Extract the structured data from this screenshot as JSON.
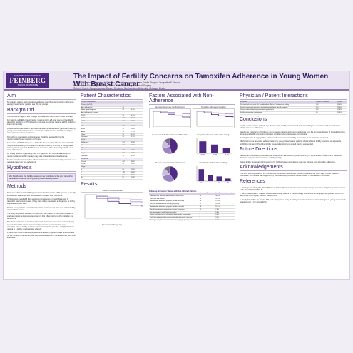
{
  "header": {
    "logo_lines": [
      "NORTHWESTERN UNIVERSITY",
      "FEINBERG",
      "SCHOOL OF MEDICINE"
    ],
    "title": "The Impact of Fertility Concerns on Tamoxifen Adherence in Young Women With Breast Cancer",
    "authors": "Natalie C. Llarena, Samantha L. Estevez, Chloe Hoover, Irene Kane, Joelle Shapiro, Jacqueline S. Jeruss",
    "affil1": "Northwestern University Feinberg School of Medicine, Department of Surgery",
    "affil2": "Robert H. Lurie Comprehensive Cancer Center of Northwestern University, Chicago, Illinois"
  },
  "col1": {
    "aim_title": "Aim",
    "aim_text": "To evaluate patient- and provider-level factors that influence tamoxifen adherence among breast cancer patients age 45 and younger.",
    "bg_title": "Background",
    "bg_paras": [
      "~22,000 women age 45 and younger are diagnosed with breast cancer annually.",
      "For patients with ER+ breast cancer, treatment with a 5-year course of the SERM tamoxifen results in a 47% reduction in annual recurrence risk and a 26% reduction in annual mortality.",
      "Despite substantial benefits, tamoxifen adherence rates are low, particularly among young women. Poor adherence is associated with increased mortality and higher rates of breast cancer recurrence.",
      "Tamoxifen is a teratogen and pregnancy should be avoided during the recommended 5-year duration of therapy.",
      "For women of childbearing age, ~45% who have developed breast cancer, fertility may be an important part of treatment decision-making. A survey of young breast cancer patients reported that 31% were concerned about becoming infertile as a result of treatment.",
      "As fertility declines significantly after the age of 35, the considerable length of recommended tamoxifen therapy may be a critical deterrent to adherence.",
      "Studies on adjuvant tamoxifen adherence have not examined fertility concerns as a potential reason for non-adherence."
    ],
    "hyp_title": "Hypothesis",
    "hyp_text": "We hypothesize that fertility concerns may contribute to the poor tamoxifen adherence observed among young breast cancer patients.",
    "meth_title": "Methods",
    "meth_paras": [
      "Data were obtained with IRB approval from Northwestern's EMR systems to identify ER+ women diagnosed with breast cancer between 2007 and 2013.",
      "Patients were included if they were pre-menopausal at time of diagnosis, if tamoxifen was recommended, if they were widely metastatic at diagnosis, or if they stopped tamoxifen early.",
      "Patient demographics, tumor characteristics and treatment data were abstracted by manual chart review.",
      "The study population included 536 patients. Each patient's chart was reviewed to evaluate patient and provider-level factors that influenced tamoxifen initiation and adherence.",
      "Provider-level factors associated with the decision were evaluated and include (1) whether tamoxifen was recommended, (2) whether a conversation about tamoxifen-related fertility concerns was initiated by the provider, and (3) whether a referral to a fertility specialist was offered.",
      "Patient-level factors included (1) whether the patient agreed to take tamoxifen and (2) the duration of tamoxifen use. Factors associated with non-adherence were also evaluated."
    ]
  },
  "col2": {
    "title": "Patient Characteristics",
    "table_title": "Patient Characteristics",
    "table": [
      {
        "l": "Patients (n=536)",
        "a": "",
        "b": "",
        "s": true
      },
      {
        "l": "Age at diagnosis",
        "a": "40",
        "b": ""
      },
      {
        "l": "Mean age at diagnosis",
        "a": "38",
        "b": "6.7%"
      },
      {
        "l": "Age at diagnosis in years",
        "a": "",
        "b": ""
      },
      {
        "l": "20-29",
        "a": "34",
        "b": "6.3%"
      },
      {
        "l": "30-39",
        "a": "188",
        "b": "35.1%"
      },
      {
        "l": "40-45",
        "a": "314",
        "b": "58.6%"
      },
      {
        "l": "Race",
        "a": "",
        "b": "",
        "s": true
      },
      {
        "l": "White",
        "a": "376",
        "b": "70.1%"
      },
      {
        "l": "Black",
        "a": "71",
        "b": "13.2%"
      },
      {
        "l": "Asian",
        "a": "38",
        "b": "7.1%"
      },
      {
        "l": "Other",
        "a": "31",
        "b": "5.8%"
      },
      {
        "l": "Unknown",
        "a": "20",
        "b": "3.7%"
      },
      {
        "l": "Parity",
        "a": "",
        "b": "",
        "s": true
      },
      {
        "l": "Nulliparous",
        "a": "201",
        "b": "37.5%"
      },
      {
        "l": "Parous",
        "a": "335",
        "b": "62.5%"
      },
      {
        "l": "Marital status",
        "a": "",
        "b": "",
        "s": true
      },
      {
        "l": "Married",
        "a": "368",
        "b": "68.7%"
      },
      {
        "l": "Single",
        "a": "149",
        "b": "27.8%"
      },
      {
        "l": "Unknown",
        "a": "19",
        "b": "3.5%"
      },
      {
        "l": "Insurance",
        "a": "",
        "b": "",
        "s": true
      },
      {
        "l": "Private",
        "a": "462",
        "b": "86.2%"
      },
      {
        "l": "Public",
        "a": "54",
        "b": "10.1%"
      },
      {
        "l": "Stage",
        "a": "",
        "b": "",
        "s": true
      },
      {
        "l": "0",
        "a": "63",
        "b": "11.8%"
      },
      {
        "l": "I",
        "a": "182",
        "b": "34.0%"
      },
      {
        "l": "II",
        "a": "200",
        "b": "37.3%"
      },
      {
        "l": "III",
        "a": "91",
        "b": "17.0%"
      }
    ],
    "results_title": "Results",
    "km_title": "Tamoxifen Adherence Data",
    "km_caption": "Time on tamoxifen (years)"
  },
  "col3": {
    "title": "Factors Associated with Non-Adherence",
    "top_chart_a": "Tamoxifen Adherence: Fertility Concerns",
    "top_chart_b": "Tamoxifen Adherence: Cessation",
    "mid_pie_a": "Reasons for Early Discontinuation of Tamoxifen",
    "mid_bar_a": "Early Discontinuation of Tamoxifen and Age",
    "low_pie_a": "Reasons for non-initiation of Tamoxifen",
    "low_bar_a": "Non-initiation of Tamoxifen and Stage",
    "disc_title": "Follow-up Discussion Themes with Non-Adherent Patients",
    "disc_cols": [
      "Number of Patients",
      "% of Patients Discussed"
    ],
    "disc_rows": [
      [
        "Side effects or concerns about potential side effects",
        "56",
        "36.4%"
      ],
      [
        "Perceived little benefit",
        "35",
        "22.7%"
      ],
      [
        "Had intention to become pregnant but did not initiate",
        "24",
        "15.6%"
      ],
      [
        "Currently off tamoxifen to attempt pregnancy",
        "22",
        "14.3%"
      ],
      [
        "Had intention to become pregnant and then initiated",
        "18",
        "11.7%"
      ],
      [
        "Would have stopped tamoxifen to attempt pregnancy",
        "12",
        "7.8%"
      ],
      [
        "Became pregnant while taking tamoxifen",
        "9",
        "5.8%"
      ],
      [
        "Patient had not pursued information about fertility preservation",
        "8",
        "5.2%"
      ],
      [
        "Could not undergo fertility preservation due to financial concerns",
        "5",
        "3.2%"
      ],
      [
        "Waiting to complete tamoxifen before attempting pregnancy",
        "4",
        "2.6%"
      ]
    ]
  },
  "col4": {
    "phys_title": "Physician / Patient Interactions",
    "phys_cols": [
      "Encounter",
      "Number of Patients",
      "Percent"
    ],
    "phys_rows": [
      [
        "Documented discussion with provider about effects of treatment on fertility",
        "152",
        "28.4%"
      ],
      [
        "Patients expressed an interest in maintaining fertility at time of diagnosis",
        "114",
        "21.3%"
      ],
      [
        "Patients offered a fertility preservation appointment",
        "107",
        "20.0%"
      ],
      [
        "Fertility preservation appointment",
        "64",
        "11.9%"
      ]
    ],
    "conc_title": "Conclusions",
    "conc_paras": [
      "For ER+ breast cancer patients age 45 and under, fertility concerns and current smoking are associated with tamoxifen non-initiation and non-adherence.",
      "Despite the importance of fertility to young cancer patients and recommendations from the American Society of Clinical Oncology, documented fertility discussions between providers and patients were inconsistent.",
      "Oncologists should engage their patients in discussions about fertility as it relates to breast cancer treatment.",
      "Efforts to improve tamoxifen adherence among young breast cancer patients should address fertility concerns, as a possible modifiable risk factor. Providing fertility preservation programs should also be emphasized."
    ],
    "fut_title": "Future Directions",
    "fut_paras": [
      "Develop and validate a predictive model of tamoxifen adherence for young women (<= 45) with ER+ breast cancer, based on physician and patient-level factors, including fertility.",
      "Design fertility preservation interventions for both providers and patients that may address poor tamoxifen adherence."
    ],
    "ack_title": "Acknowledgements",
    "ack_text": "This work was supported by the Oncofertility Consortium NIH/NICHD U54HD076188 and the Lynn Sage Cancer Research Foundation. Dr. Llarena was supported by the Lurie Comprehensive Cancer Center of Northwestern University.",
    "ref_title": "References",
    "refs": [
      "1. Partridge AH, Wang PS, Winer EP, Avorn J. Nonadherence to adjuvant tamoxifen therapy in women with primary breast cancer. J Clin Oncol 2003;21:602-6.",
      "2. Early Breast Cancer Trialists' Collaborative Group. Effects of chemotherapy and hormonal therapy for early breast cancer on recurrence and 15-year survival. Lancet 2005.",
      "3. Ruddy KJ, Gelber SI, Tamimi RM, et al. Prospective study of fertility concerns and preservation strategies in young women with breast cancer. J Clin Oncol 2014."
    ]
  },
  "chart_data": [
    {
      "type": "line",
      "title": "Tamoxifen Adherence Data",
      "xlabel": "Time on tamoxifen (years)",
      "ylabel": "Proportion adherent",
      "x": [
        0,
        1,
        2,
        3,
        4,
        5
      ],
      "ylim": [
        0,
        1
      ],
      "series": [
        {
          "name": "",
          "values": [
            1.0,
            0.85,
            0.72,
            0.62,
            0.55,
            0.5
          ]
        },
        {
          "name": "",
          "values": [
            1.0,
            0.92,
            0.84,
            0.77,
            0.7,
            0.65
          ]
        },
        {
          "name": "",
          "values": [
            1.0,
            0.95,
            0.9,
            0.85,
            0.8,
            0.76
          ]
        }
      ]
    },
    {
      "type": "line",
      "title": "Tamoxifen Adherence: Fertility Concerns",
      "x": [
        0,
        1,
        2,
        3,
        4,
        5
      ],
      "ylim": [
        0,
        1
      ],
      "series": [
        {
          "name": "",
          "values": [
            1.0,
            0.9,
            0.8,
            0.7,
            0.62,
            0.55
          ]
        },
        {
          "name": "",
          "values": [
            1.0,
            0.96,
            0.92,
            0.88,
            0.84,
            0.8
          ]
        }
      ]
    },
    {
      "type": "line",
      "title": "Tamoxifen Adherence: Cessation",
      "x": [
        0,
        1,
        2,
        3,
        4,
        5
      ],
      "ylim": [
        0,
        1
      ],
      "series": [
        {
          "name": "",
          "values": [
            1.0,
            0.88,
            0.78,
            0.7,
            0.64,
            0.6
          ]
        },
        {
          "name": "",
          "values": [
            1.0,
            0.95,
            0.9,
            0.86,
            0.82,
            0.79
          ]
        }
      ]
    },
    {
      "type": "pie",
      "title": "Reasons for Early Discontinuation of Tamoxifen",
      "categories": [
        "Side effects",
        "Pregnancy",
        "Other",
        "Unknown"
      ],
      "values": [
        46,
        24,
        18,
        12
      ]
    },
    {
      "type": "bar",
      "title": "Early Discontinuation of Tamoxifen and Age",
      "categories": [
        "20-29",
        "30-39",
        "40-45"
      ],
      "values": [
        48,
        35,
        21
      ],
      "ylim": [
        0,
        60
      ]
    },
    {
      "type": "pie",
      "title": "Reasons for non-initiation of Tamoxifen",
      "categories": [
        "Pregnancy",
        "Side effects",
        "Other",
        "Unknown"
      ],
      "values": [
        40,
        30,
        18,
        12
      ]
    },
    {
      "type": "bar",
      "title": "Non-initiation of Tamoxifen and Stage",
      "categories": [
        "0",
        "I",
        "II",
        "III"
      ],
      "values": [
        28,
        15,
        11,
        6
      ],
      "ylim": [
        0,
        35
      ]
    }
  ],
  "colors": {
    "accent": "#4e2a84",
    "light": "#e9e3f1",
    "s1": "#4e2a84",
    "s2": "#9d85c3",
    "s3": "#c9bce0",
    "s4": "#7a6f86"
  }
}
